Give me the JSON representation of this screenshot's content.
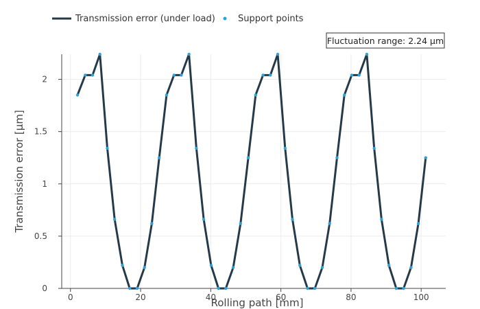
{
  "chart_data": {
    "type": "line",
    "xlabel": "Rolling path [mm]",
    "ylabel": "Transmission error [µm]",
    "xlim": [
      -2.5,
      107
    ],
    "ylim": [
      0,
      2.24
    ],
    "x_ticks": [
      0,
      20,
      40,
      60,
      80,
      100
    ],
    "y_ticks": [
      0,
      0.5,
      1,
      1.5,
      2
    ],
    "x_tick_labels": [
      "0",
      "20",
      "40",
      "60",
      "80",
      "100"
    ],
    "y_tick_labels": [
      "0",
      "0.5",
      "1",
      "1.5",
      "2"
    ],
    "grid": true,
    "legend_position": "top-left",
    "annotation": "Fluctuation range: 2.24 µm",
    "series": [
      {
        "name": "Transmission error (under load)",
        "mode": "line",
        "color": "#243a4b",
        "x": [
          2.0,
          4.2,
          6.3,
          8.4,
          10.5,
          12.6,
          14.8,
          16.9,
          19.0,
          21.1,
          23.2,
          25.3,
          27.4,
          29.5,
          31.6,
          33.8,
          35.9,
          38.0,
          40.1,
          42.2,
          44.3,
          46.4,
          48.5,
          50.7,
          52.8,
          54.9,
          57.0,
          59.1,
          61.2,
          63.3,
          65.4,
          67.6,
          69.7,
          71.8,
          73.9,
          76.0,
          78.1,
          80.2,
          82.3,
          84.5,
          86.6,
          88.7,
          90.8,
          92.9,
          95.0,
          97.1,
          99.2,
          101.3
        ],
        "y": [
          1.85,
          2.04,
          2.04,
          2.24,
          1.34,
          0.66,
          0.22,
          0.0,
          0.0,
          0.2,
          0.62,
          1.25,
          1.85,
          2.04,
          2.04,
          2.24,
          1.34,
          0.66,
          0.22,
          0.0,
          0.0,
          0.2,
          0.62,
          1.25,
          1.85,
          2.04,
          2.04,
          2.24,
          1.34,
          0.66,
          0.22,
          0.0,
          0.0,
          0.2,
          0.62,
          1.25,
          1.85,
          2.04,
          2.04,
          2.24,
          1.34,
          0.66,
          0.22,
          0.0,
          0.0,
          0.2,
          0.62,
          1.25
        ]
      },
      {
        "name": "Support points",
        "mode": "markers",
        "color": "#29a3dc",
        "x": [
          2.0,
          4.2,
          6.3,
          8.4,
          10.5,
          12.6,
          14.8,
          16.9,
          19.0,
          21.1,
          23.2,
          25.3,
          27.4,
          29.5,
          31.6,
          33.8,
          35.9,
          38.0,
          40.1,
          42.2,
          44.3,
          46.4,
          48.5,
          50.7,
          52.8,
          54.9,
          57.0,
          59.1,
          61.2,
          63.3,
          65.4,
          67.6,
          69.7,
          71.8,
          73.9,
          76.0,
          78.1,
          80.2,
          82.3,
          84.5,
          86.6,
          88.7,
          90.8,
          92.9,
          95.0,
          97.1,
          99.2,
          101.3
        ],
        "y": [
          1.85,
          2.04,
          2.04,
          2.24,
          1.34,
          0.66,
          0.22,
          0.0,
          0.0,
          0.2,
          0.62,
          1.25,
          1.85,
          2.04,
          2.04,
          2.24,
          1.34,
          0.66,
          0.22,
          0.0,
          0.0,
          0.2,
          0.62,
          1.25,
          1.85,
          2.04,
          2.04,
          2.24,
          1.34,
          0.66,
          0.22,
          0.0,
          0.0,
          0.2,
          0.62,
          1.25,
          1.85,
          2.04,
          2.04,
          2.24,
          1.34,
          0.66,
          0.22,
          0.0,
          0.0,
          0.2,
          0.62,
          1.25
        ]
      }
    ]
  }
}
